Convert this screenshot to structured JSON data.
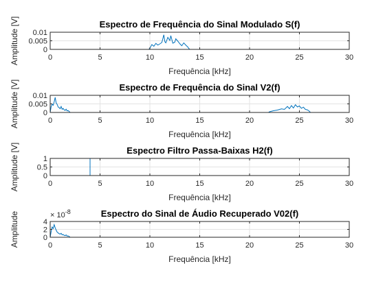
{
  "figure": {
    "background": "#ffffff",
    "series_color": "#0072bd",
    "axis_color": "#262626",
    "grid_color": "#e3e3e3"
  },
  "chart_data": [
    {
      "type": "line",
      "title": "Espectro de Frequência do Sinal Modulado S(f)",
      "xlabel": "Frequência [kHz]",
      "ylabel": "Amplitude [V]",
      "xlim": [
        0,
        30
      ],
      "ylim": [
        0,
        0.01
      ],
      "xticks": [
        0,
        5,
        10,
        15,
        20,
        25,
        30
      ],
      "xtick_labels": [
        "0",
        "5",
        "10",
        "15",
        "20",
        "25",
        "30"
      ],
      "yticks": [
        0,
        0.005,
        0.01
      ],
      "ytick_labels": [
        "0",
        "0.005",
        "0.01"
      ],
      "exponent_label": "",
      "grid": true,
      "series": [
        {
          "x": [
            0,
            9.9,
            10.0,
            10.2,
            10.4,
            10.6,
            10.8,
            11.0,
            11.2,
            11.4,
            11.5,
            11.6,
            11.8,
            12.0,
            12.1,
            12.3,
            12.5,
            12.6,
            12.8,
            13.0,
            13.2,
            13.4,
            13.6,
            13.8,
            13.9,
            14.0,
            30
          ],
          "y": [
            0,
            0,
            0.0007,
            0.0028,
            0.0018,
            0.0035,
            0.0025,
            0.0032,
            0.004,
            0.0085,
            0.0045,
            0.0038,
            0.007,
            0.0052,
            0.008,
            0.0036,
            0.0042,
            0.0062,
            0.0048,
            0.0033,
            0.0021,
            0.0038,
            0.0025,
            0.0014,
            0.0006,
            0,
            0
          ]
        }
      ]
    },
    {
      "type": "line",
      "title": "Espectro de Frequência do Sinal V2(f)",
      "xlabel": "Frequência [kHz]",
      "ylabel": "Amplitude [V]",
      "xlim": [
        0,
        30
      ],
      "ylim": [
        0,
        0.01
      ],
      "xticks": [
        0,
        5,
        10,
        15,
        20,
        25,
        30
      ],
      "xtick_labels": [
        "0",
        "5",
        "10",
        "15",
        "20",
        "25",
        "30"
      ],
      "yticks": [
        0,
        0.005,
        0.01
      ],
      "ytick_labels": [
        "0",
        "0.005",
        "0.01"
      ],
      "exponent_label": "",
      "grid": true,
      "series": [
        {
          "x": [
            0,
            0.1,
            0.2,
            0.3,
            0.4,
            0.5,
            0.6,
            0.7,
            0.8,
            0.9,
            1.0,
            1.1,
            1.2,
            1.3,
            1.4,
            1.5,
            1.6,
            1.7,
            1.8,
            1.9,
            2.0,
            21.9,
            22.0,
            22.4,
            22.8,
            23.2,
            23.5,
            23.8,
            24.0,
            24.2,
            24.4,
            24.6,
            24.8,
            25.0,
            25.2,
            25.4,
            25.6,
            25.8,
            26.0,
            26.1,
            30
          ],
          "y": [
            0,
            0.0035,
            0.0048,
            0.0042,
            0.0062,
            0.0088,
            0.0055,
            0.0047,
            0.0032,
            0.0028,
            0.0022,
            0.0035,
            0.0018,
            0.0024,
            0.0015,
            0.0012,
            0.0019,
            0.0009,
            0.0011,
            0.0006,
            0,
            0,
            0.0004,
            0.001,
            0.0014,
            0.0021,
            0.0018,
            0.0035,
            0.0022,
            0.004,
            0.0026,
            0.0045,
            0.0032,
            0.0038,
            0.0024,
            0.0031,
            0.0018,
            0.0015,
            0.0007,
            0,
            0
          ]
        }
      ]
    },
    {
      "type": "line",
      "title": "Espectro Filtro Passa-Baixas H2(f)",
      "xlabel": "Frequência [kHz]",
      "ylabel": "Amplitude [V]",
      "xlim": [
        0,
        30
      ],
      "ylim": [
        0,
        1
      ],
      "xticks": [
        0,
        5,
        10,
        15,
        20,
        25,
        30
      ],
      "xtick_labels": [
        "0",
        "5",
        "10",
        "15",
        "20",
        "25",
        "30"
      ],
      "yticks": [
        0,
        0.5,
        1
      ],
      "ytick_labels": [
        "0",
        "0.5",
        "1"
      ],
      "exponent_label": "",
      "grid": true,
      "series": [
        {
          "x": [
            0,
            4,
            4,
            30
          ],
          "y": [
            1,
            1,
            0,
            0
          ]
        }
      ]
    },
    {
      "type": "line",
      "title": "Espectro do Sinal de Áudio Recuperado V02(f)",
      "xlabel": "Frequência [kHz]",
      "ylabel": "Amplitude",
      "xlim": [
        0,
        30
      ],
      "ylim": [
        0,
        4e-08
      ],
      "xticks": [
        0,
        5,
        10,
        15,
        20,
        25,
        30
      ],
      "xtick_labels": [
        "0",
        "5",
        "10",
        "15",
        "20",
        "25",
        "30"
      ],
      "yticks": [
        0,
        2e-08,
        4e-08
      ],
      "ytick_labels": [
        "0",
        "2",
        "4"
      ],
      "exponent_label": "× 10",
      "exponent_power": "-8",
      "grid": true,
      "series": [
        {
          "x": [
            0,
            0.1,
            0.2,
            0.3,
            0.4,
            0.5,
            0.6,
            0.7,
            0.8,
            0.9,
            1.0,
            1.1,
            1.2,
            1.3,
            1.4,
            1.5,
            1.6,
            1.7,
            1.8,
            1.9,
            2.0,
            30
          ],
          "y": [
            0,
            1.5e-08,
            2.6e-08,
            2.2e-08,
            3.2e-08,
            2.4e-08,
            1.8e-08,
            1.3e-08,
            1.1e-08,
            9e-09,
            8e-09,
            1e-08,
            6e-09,
            7e-09,
            5e-09,
            4e-09,
            6e-09,
            3e-09,
            3.5e-09,
            2e-09,
            0,
            0
          ]
        }
      ]
    }
  ]
}
